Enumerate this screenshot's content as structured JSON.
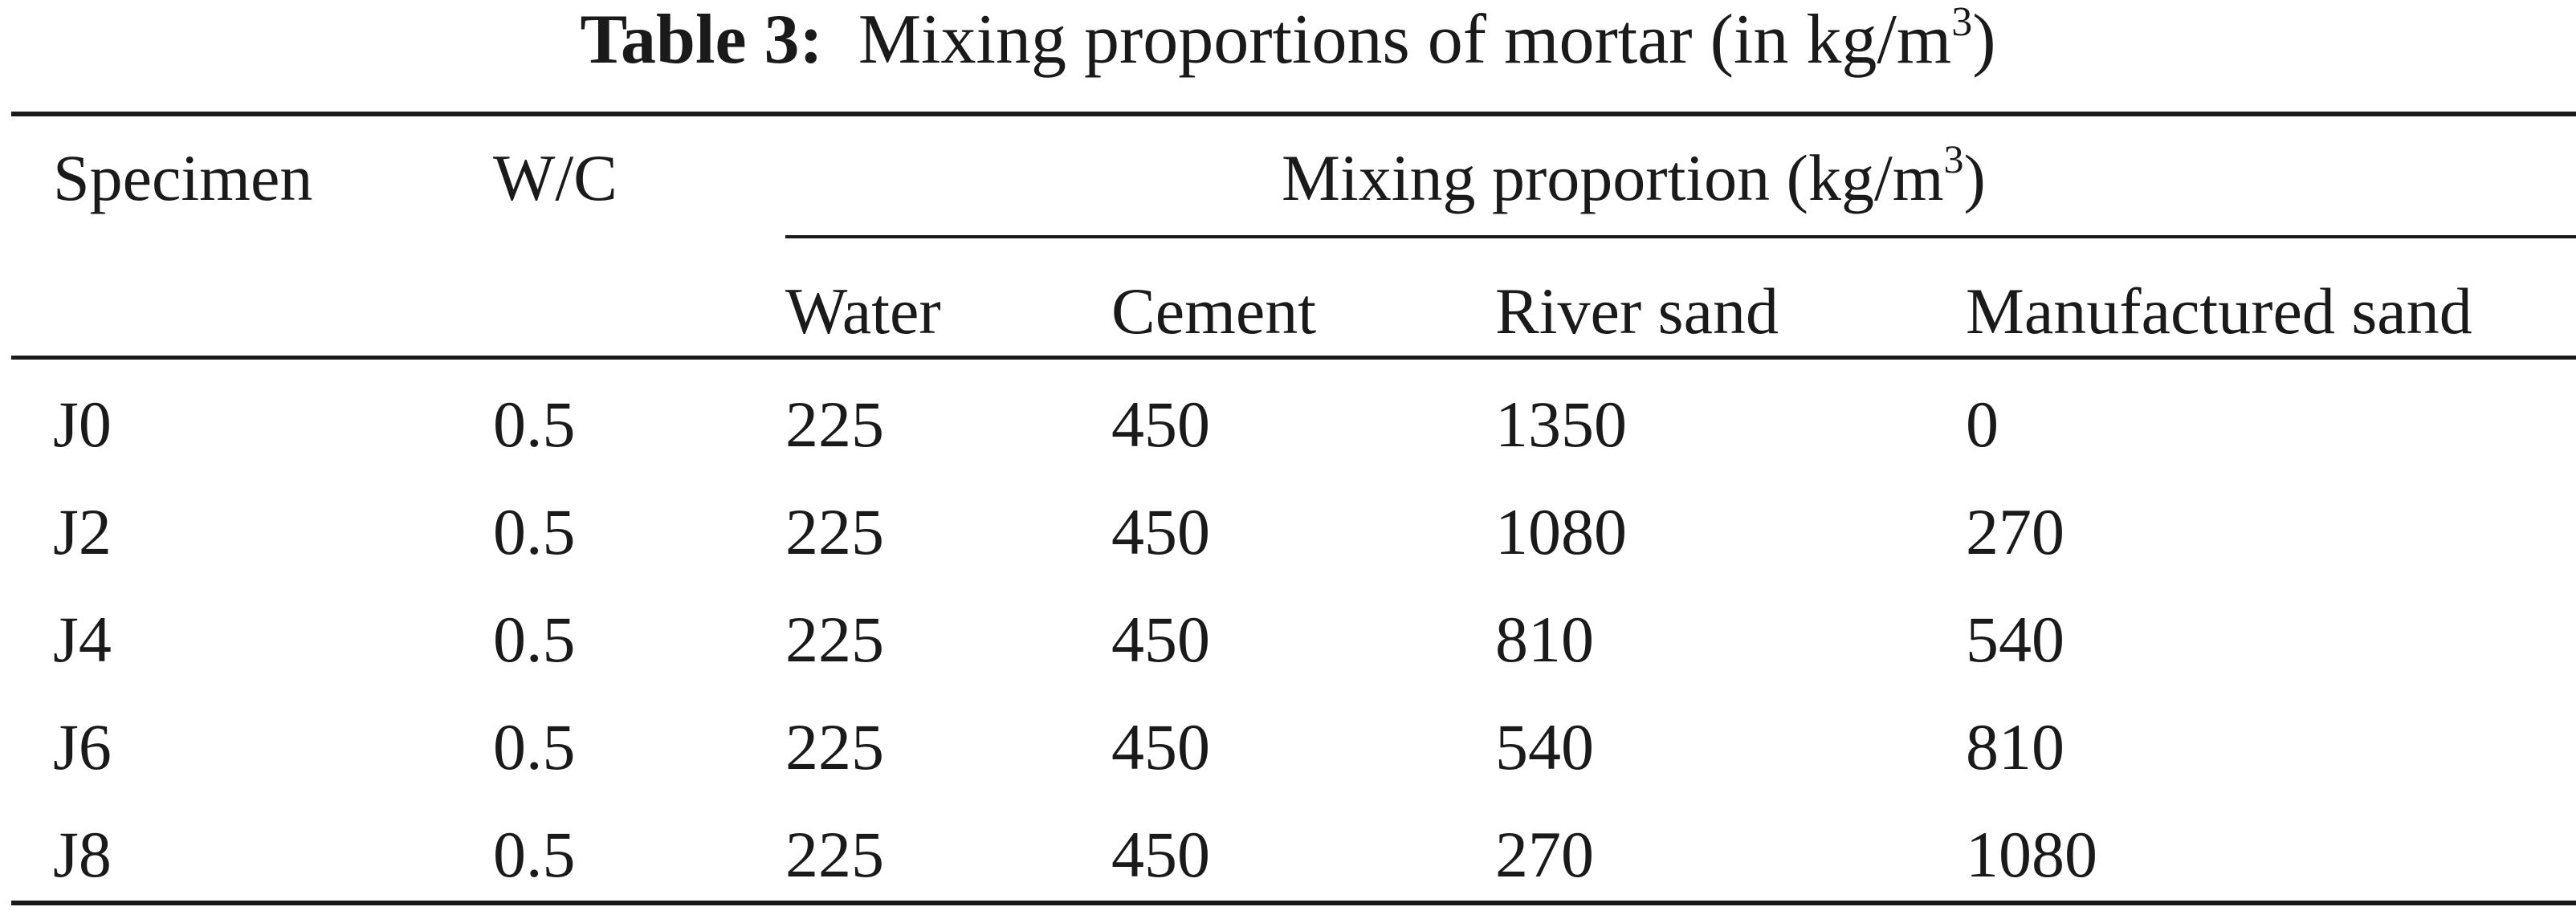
{
  "caption": {
    "label": "Table 3:",
    "text": "Mixing proportions of mortar (in kg/m",
    "superscript": "3",
    "close": ")"
  },
  "table": {
    "headers": {
      "specimen": "Specimen",
      "wc": "W/C",
      "span_text": "Mixing proportion (kg/m",
      "span_superscript": "3",
      "span_close": ")",
      "sub": [
        "Water",
        "Cement",
        "River sand",
        "Manufactured sand"
      ]
    },
    "rows": [
      [
        "J0",
        "0.5",
        "225",
        "450",
        "1350",
        "0"
      ],
      [
        "J2",
        "0.5",
        "225",
        "450",
        "1080",
        "270"
      ],
      [
        "J4",
        "0.5",
        "225",
        "450",
        "810",
        "540"
      ],
      [
        "J6",
        "0.5",
        "225",
        "450",
        "540",
        "810"
      ],
      [
        "J8",
        "0.5",
        "225",
        "450",
        "270",
        "1080"
      ]
    ]
  }
}
